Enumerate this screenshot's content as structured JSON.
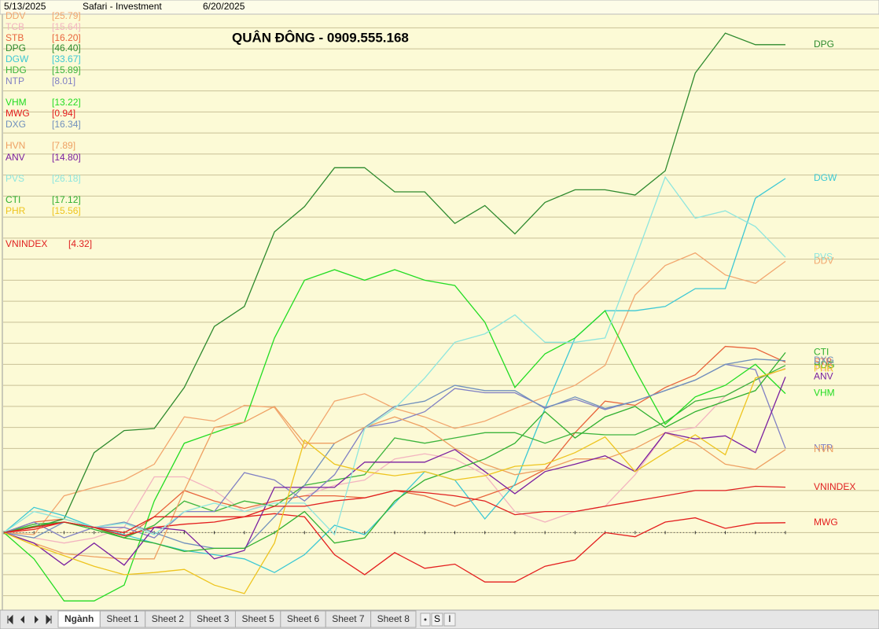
{
  "chart_data": {
    "type": "line",
    "title": "QUÂN ĐÔNG - 0909.555.168",
    "source": "Safari - Investment",
    "categories": [
      "5/13/2025",
      null,
      null,
      null,
      null,
      null,
      null,
      null,
      null,
      null,
      null,
      null,
      null,
      null,
      null,
      null,
      null,
      null,
      null,
      null,
      null,
      null,
      null,
      null,
      null,
      null,
      "6/20/2025"
    ],
    "ylim": [
      -7.3,
      49.3
    ],
    "yticks": [
      -6,
      -4,
      -2,
      0,
      2,
      4,
      6,
      8,
      10,
      12,
      14,
      16,
      18,
      20,
      22,
      24,
      26,
      28,
      30,
      32,
      34,
      36,
      38,
      40,
      42,
      44,
      46,
      48
    ],
    "grid": true,
    "series": [
      {
        "name": "DDV",
        "color": "#f2a66e",
        "value_label": "[25.79]",
        "values": [
          0,
          -0.2,
          3.5,
          4.3,
          5,
          6.5,
          11,
          10.6,
          12.1,
          11.9,
          8,
          12.5,
          13.2,
          11.8,
          11,
          9.9,
          10.6,
          11.8,
          12.9,
          14,
          15.9,
          22.6,
          25.4,
          26.6,
          24.5,
          23.7,
          25.79
        ]
      },
      {
        "name": "TCB",
        "color": "#f3b4c0",
        "value_label": "[15.64]",
        "values": [
          0,
          -0.5,
          -1,
          -0.5,
          0.5,
          5.3,
          5.3,
          4,
          2,
          3,
          3.5,
          4.5,
          5,
          7,
          7.5,
          7,
          5.5,
          2,
          1,
          2,
          2.5,
          5.5,
          9.5,
          10,
          13,
          14.5,
          15.64
        ]
      },
      {
        "name": "STB",
        "color": "#e8643c",
        "value_label": "[16.20]",
        "values": [
          0,
          1,
          1.3,
          0.5,
          -0.5,
          1.5,
          4,
          3,
          2.3,
          3,
          3.5,
          3.5,
          3.3,
          4,
          3.5,
          2.5,
          3.5,
          4.5,
          6,
          9.5,
          12.5,
          12.1,
          13.8,
          15,
          17.7,
          17.5,
          16.2
        ]
      },
      {
        "name": "DPG",
        "color": "#2e8a2e",
        "value_label": "[46.40]",
        "values": [
          0,
          0.5,
          1.3,
          7.6,
          9.7,
          9.9,
          13.8,
          19.6,
          21.5,
          28.6,
          31,
          34.7,
          34.7,
          32.4,
          32.4,
          29.4,
          31.1,
          28.4,
          31.4,
          32.6,
          32.6,
          32.1,
          34.4,
          43.7,
          47.5,
          46.4,
          46.4
        ]
      },
      {
        "name": "DGW",
        "color": "#3cc8d4",
        "value_label": "[33.67]",
        "values": [
          0,
          2.4,
          1.6,
          0.5,
          -0.2,
          -1,
          -1.7,
          -2.1,
          -2.5,
          -3.8,
          -2.1,
          0.7,
          -0.2,
          2.8,
          5.8,
          5,
          1.3,
          4.6,
          11.8,
          18.5,
          21.1,
          21.1,
          21.5,
          23.2,
          23.2,
          31.8,
          33.67
        ]
      },
      {
        "name": "HDG",
        "color": "#3cb43c",
        "value_label": "[15.89]",
        "values": [
          0,
          0.8,
          1,
          0.5,
          -0.5,
          0.7,
          3,
          2,
          3,
          2.5,
          4.5,
          5,
          5.5,
          9,
          8.5,
          9,
          9.5,
          9.5,
          8.5,
          9.5,
          9.3,
          9.3,
          10.5,
          12.5,
          13,
          14.5,
          15.89
        ]
      },
      {
        "name": "NTP",
        "color": "#8080c4",
        "value_label": "[8.01]",
        "values": [
          0,
          1,
          -0.5,
          0.5,
          0.5,
          -0.5,
          2,
          2,
          5.7,
          5,
          3,
          5.5,
          10,
          10.5,
          11.5,
          13.7,
          13.3,
          13.3,
          11.9,
          12.7,
          11.7,
          12.5,
          13.5,
          14.5,
          16,
          15.5,
          8.01
        ]
      },
      {
        "name": "VHM",
        "color": "#22dc22",
        "value_label": "[13.22]",
        "values": [
          0,
          -2.5,
          -6.5,
          -6.5,
          -5,
          3,
          8.5,
          9.5,
          10.5,
          18.5,
          24,
          25,
          24,
          25,
          24,
          23.5,
          20,
          13.8,
          17,
          18.5,
          21.1,
          15.5,
          10.3,
          12.9,
          14,
          16,
          13.22
        ]
      },
      {
        "name": "MWG",
        "color": "#e41e1e",
        "value_label": "[0.94]",
        "values": [
          0,
          0.3,
          1,
          0.5,
          -0.3,
          0.5,
          0.8,
          1,
          1.5,
          1.8,
          1.5,
          -2.1,
          -4,
          -1.9,
          -3.4,
          -3,
          -4.7,
          -4.7,
          -3.2,
          -2.6,
          0,
          -0.4,
          1,
          1.4,
          0.4,
          0.9,
          0.94
        ]
      },
      {
        "name": "DXG",
        "color": "#7090bc",
        "value_label": "[16.34]",
        "values": [
          0,
          -0.5,
          1,
          0.5,
          1,
          0,
          -1,
          -1.5,
          -1.5,
          1.5,
          4.5,
          8.5,
          10,
          12,
          12.5,
          14,
          13.5,
          13.5,
          11.8,
          12.9,
          11.8,
          12.5,
          13.5,
          14.5,
          16,
          16.5,
          16.34
        ]
      },
      {
        "name": "HVN",
        "color": "#eea062",
        "value_label": "[7.89]",
        "values": [
          0,
          -1,
          -2,
          -2.3,
          -2.5,
          -2.5,
          4,
          10,
          10.5,
          12,
          8.5,
          8.5,
          10,
          11,
          10,
          8,
          6.5,
          5.5,
          6,
          7,
          7,
          8,
          9.5,
          8.5,
          6.5,
          6,
          7.89
        ]
      },
      {
        "name": "ANV",
        "color": "#7a1fa0",
        "value_label": "[14.80]",
        "values": [
          0,
          -1,
          -3.1,
          -1,
          -3.1,
          0.5,
          0.2,
          -2.5,
          -1.7,
          4.3,
          4.3,
          4.3,
          6.7,
          6.7,
          6.7,
          7.9,
          5.8,
          3.7,
          5.8,
          6.5,
          7.3,
          5.8,
          9.5,
          8.9,
          9.2,
          7.6,
          14.8
        ]
      },
      {
        "name": "PVS",
        "color": "#8ee6de",
        "value_label": "[26.18]",
        "values": [
          0,
          2,
          1.3,
          0.5,
          0.9,
          -0.2,
          2,
          2.8,
          2,
          2.8,
          2.8,
          -0.2,
          9.9,
          11.8,
          14.7,
          18.1,
          18.9,
          20.7,
          18.1,
          18.1,
          18.5,
          26,
          33.8,
          29.9,
          30.6,
          29.1,
          26.18
        ]
      },
      {
        "name": "CTI",
        "color": "#30b030",
        "value_label": "[17.12]",
        "values": [
          0,
          0.6,
          1,
          0.3,
          -0.5,
          -1,
          -1.8,
          -1.5,
          -1.5,
          0,
          2,
          -1,
          -0.5,
          3,
          5,
          6,
          7,
          8.5,
          11.5,
          9,
          11,
          12,
          10,
          11.5,
          12.5,
          13.5,
          17.12
        ]
      },
      {
        "name": "PHR",
        "color": "#eec41e",
        "value_label": "[15.56]",
        "values": [
          0,
          -1.2,
          -2.2,
          -3.2,
          -4,
          -3.8,
          -3.5,
          -5,
          -5.8,
          -1,
          8.8,
          6.5,
          5.8,
          5.4,
          5.8,
          5,
          5.4,
          6.3,
          6.5,
          7.6,
          9.1,
          5.8,
          7.6,
          9.3,
          7.4,
          14.7,
          15.56
        ]
      },
      {
        "name": "VNINDEX",
        "color": "#e02020",
        "value_label": "[4.32]",
        "values": [
          0,
          0.5,
          1,
          0.5,
          0,
          1.5,
          1.5,
          1.5,
          1.5,
          2.5,
          2.5,
          3,
          3.3,
          4,
          3.8,
          3.5,
          3,
          1.7,
          2,
          2,
          2.5,
          3,
          3.5,
          4,
          4,
          4.4,
          4.32
        ]
      }
    ]
  },
  "tabs": [
    "Ngành",
    "Sheet 1",
    "Sheet 2",
    "Sheet 3",
    "Sheet 5",
    "Sheet 6",
    "Sheet 7",
    "Sheet 8"
  ],
  "controls": [
    "S",
    "I"
  ]
}
